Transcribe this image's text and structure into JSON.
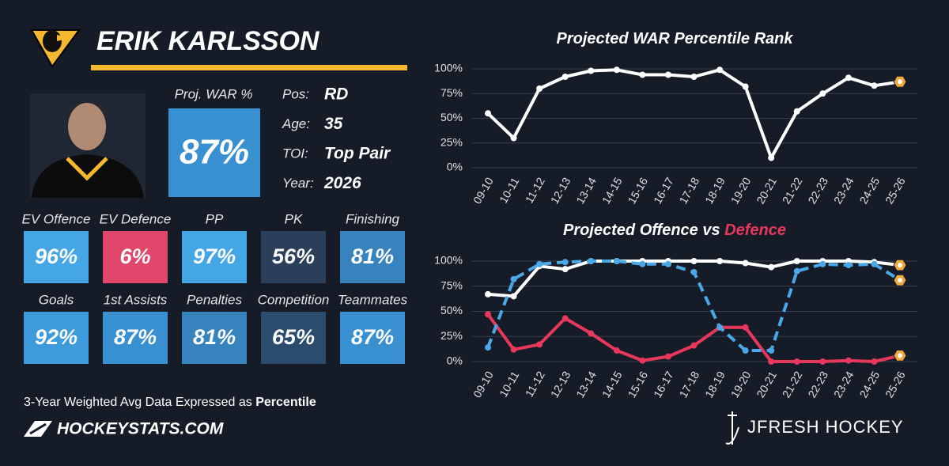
{
  "player": {
    "name": "ERIK KARLSSON",
    "proj_label": "Proj. WAR %",
    "proj_value": "87%",
    "info": [
      {
        "label": "Pos:",
        "value": "RD"
      },
      {
        "label": "Age:",
        "value": "35"
      },
      {
        "label": "TOI:",
        "value": "Top Pair"
      },
      {
        "label": "Year:",
        "value": "2026"
      }
    ]
  },
  "tiles": [
    {
      "label": "EV Offence",
      "value": "96%",
      "color": "#45a6e6"
    },
    {
      "label": "EV Defence",
      "value": "6%",
      "color": "#e0476a"
    },
    {
      "label": "PP",
      "value": "97%",
      "color": "#45a6e6"
    },
    {
      "label": "PK",
      "value": "56%",
      "color": "#2a3f5a"
    },
    {
      "label": "Finishing",
      "value": "81%",
      "color": "#3683bd"
    },
    {
      "label": "Goals",
      "value": "92%",
      "color": "#3d9bdb"
    },
    {
      "label": "1st Assists",
      "value": "87%",
      "color": "#3990d0"
    },
    {
      "label": "Penalties",
      "value": "81%",
      "color": "#3683bd"
    },
    {
      "label": "Competition",
      "value": "65%",
      "color": "#2c4c6e"
    },
    {
      "label": "Teammates",
      "value": "87%",
      "color": "#3990d0"
    }
  ],
  "footer": {
    "note": "3-Year Weighted Avg Data Expressed as",
    "note_bold": "Percentile",
    "site": "HOCKEYSTATS.COM",
    "brand": "JFRESH HOCKEY"
  },
  "chart_data": [
    {
      "type": "line",
      "title": "Projected WAR Percentile Rank",
      "categories": [
        "09-10",
        "10-11",
        "11-12",
        "12-13",
        "13-14",
        "14-15",
        "15-16",
        "16-17",
        "17-18",
        "18-19",
        "19-20",
        "20-21",
        "21-22",
        "22-23",
        "23-24",
        "24-25",
        "25-26"
      ],
      "series": [
        {
          "color": "#ffffff",
          "values": [
            55,
            30,
            80,
            92,
            98,
            99,
            94,
            94,
            92,
            99,
            82,
            10,
            57,
            75,
            91,
            83,
            87
          ]
        }
      ],
      "ylim": [
        0,
        100
      ],
      "yticks": [
        {
          "value": 0,
          "label": "0%"
        },
        {
          "value": 25,
          "label": "25%"
        },
        {
          "value": 50,
          "label": "50%"
        },
        {
          "value": 75,
          "label": "75%"
        },
        {
          "value": 100,
          "label": "100%"
        }
      ],
      "grid": true,
      "last_marker_color": "#f2a93b"
    },
    {
      "type": "line",
      "title": "Projected Offence vs",
      "title_highlight": "Defence",
      "title_highlight_color": "#e8375c",
      "categories": [
        "09-10",
        "10-11",
        "11-12",
        "12-13",
        "13-14",
        "14-15",
        "15-16",
        "16-17",
        "17-18",
        "18-19",
        "19-20",
        "20-21",
        "21-22",
        "22-23",
        "23-24",
        "24-25",
        "25-26"
      ],
      "series": [
        {
          "color": "#ffffff",
          "values": [
            67,
            65,
            95,
            92,
            100,
            100,
            100,
            100,
            100,
            100,
            98,
            94,
            100,
            100,
            100,
            99,
            96
          ]
        },
        {
          "color": "#e8375c",
          "values": [
            47,
            12,
            17,
            43,
            28,
            11,
            1,
            5,
            16,
            34,
            34,
            0,
            0,
            0,
            1,
            0,
            6
          ]
        },
        {
          "color": "#4aa8e8",
          "dashed": true,
          "values": [
            14,
            82,
            97,
            99,
            100,
            100,
            97,
            97,
            89,
            34,
            11,
            11,
            90,
            97,
            96,
            97,
            81
          ]
        }
      ],
      "ylim": [
        0,
        100
      ],
      "yticks": [
        {
          "value": 0,
          "label": "0%"
        },
        {
          "value": 25,
          "label": "25%"
        },
        {
          "value": 50,
          "label": "50%"
        },
        {
          "value": 75,
          "label": "75%"
        },
        {
          "value": 100,
          "label": "100%"
        }
      ],
      "grid": true,
      "last_marker_color": "#f2a93b"
    }
  ]
}
